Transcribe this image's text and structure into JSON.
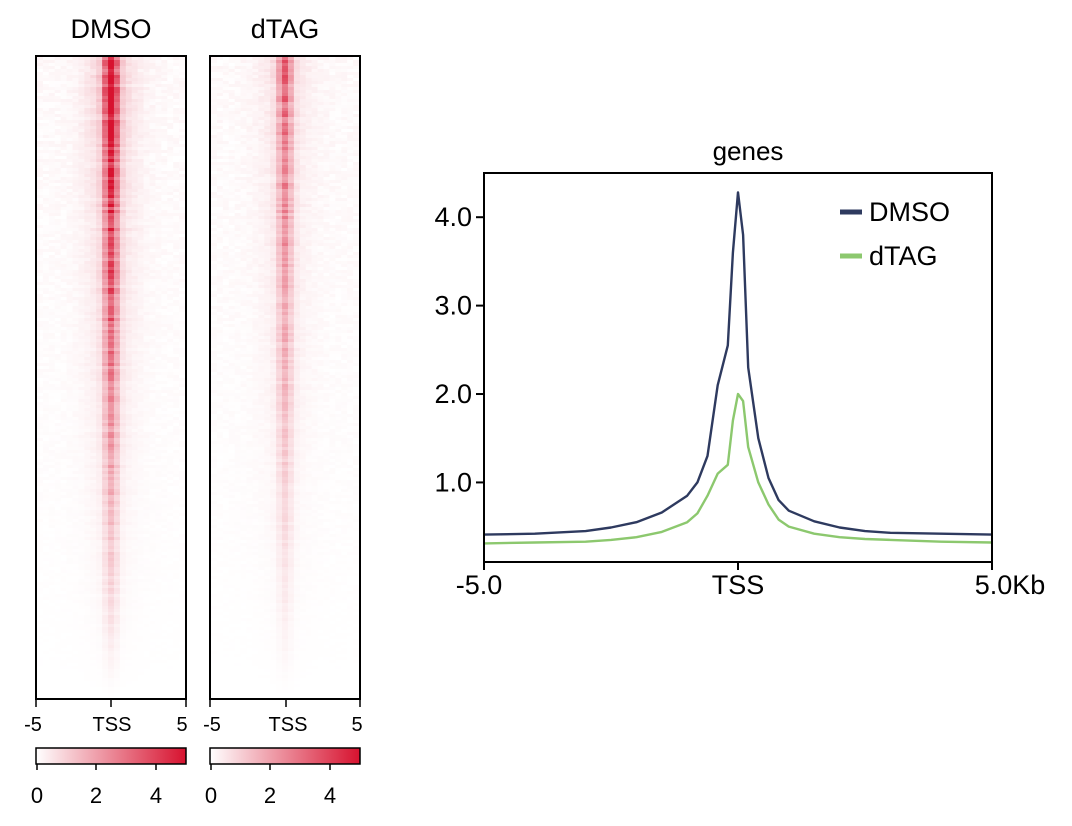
{
  "heatmaps": [
    {
      "title": "DMSO",
      "tick_labels": [
        "-5",
        "TSS",
        "5"
      ],
      "colorbar_ticks": [
        "0",
        "2",
        "4"
      ],
      "peak_intensity": 1.0
    },
    {
      "title": "dTAG",
      "tick_labels": [
        "-5",
        "TSS",
        "5"
      ],
      "colorbar_ticks": [
        "0",
        "2",
        "4"
      ],
      "peak_intensity": 0.55
    }
  ],
  "colors": {
    "heat_low": "#ffffff",
    "heat_high": "#d7122f",
    "dmso": "#2e3a5f",
    "dtag": "#8cc86e"
  },
  "colorbar_range": [
    0,
    5
  ],
  "chart_data": {
    "type": "line",
    "title": "genes",
    "xlabel": "",
    "ylabel": "",
    "x_tick_labels": [
      "-5.0",
      "TSS",
      "5.0Kb"
    ],
    "y_ticks": [
      1.0,
      2.0,
      3.0,
      4.0
    ],
    "y_tick_labels": [
      "1.0",
      "2.0",
      "3.0",
      "4.0"
    ],
    "xlim": [
      -5,
      5
    ],
    "ylim": [
      0.1,
      4.5
    ],
    "legend": "top-right",
    "series": [
      {
        "name": "DMSO",
        "color": "#2e3a5f",
        "x": [
          -5.0,
          -4.0,
          -3.0,
          -2.5,
          -2.0,
          -1.5,
          -1.0,
          -0.8,
          -0.6,
          -0.4,
          -0.2,
          -0.1,
          0.0,
          0.1,
          0.2,
          0.4,
          0.6,
          0.8,
          1.0,
          1.5,
          2.0,
          2.5,
          3.0,
          4.0,
          5.0
        ],
        "y": [
          0.41,
          0.42,
          0.45,
          0.49,
          0.55,
          0.66,
          0.85,
          1.0,
          1.3,
          2.1,
          2.55,
          3.6,
          4.28,
          3.8,
          2.3,
          1.5,
          1.05,
          0.8,
          0.68,
          0.56,
          0.49,
          0.45,
          0.43,
          0.42,
          0.41
        ]
      },
      {
        "name": "dTAG",
        "color": "#8cc86e",
        "x": [
          -5.0,
          -4.0,
          -3.0,
          -2.5,
          -2.0,
          -1.5,
          -1.0,
          -0.8,
          -0.6,
          -0.4,
          -0.2,
          -0.1,
          0.0,
          0.1,
          0.2,
          0.4,
          0.6,
          0.8,
          1.0,
          1.5,
          2.0,
          2.5,
          3.0,
          4.0,
          5.0
        ],
        "y": [
          0.31,
          0.32,
          0.33,
          0.35,
          0.38,
          0.44,
          0.55,
          0.65,
          0.85,
          1.1,
          1.2,
          1.7,
          2.0,
          1.92,
          1.4,
          1.0,
          0.75,
          0.58,
          0.5,
          0.42,
          0.38,
          0.36,
          0.35,
          0.33,
          0.32
        ]
      }
    ]
  }
}
